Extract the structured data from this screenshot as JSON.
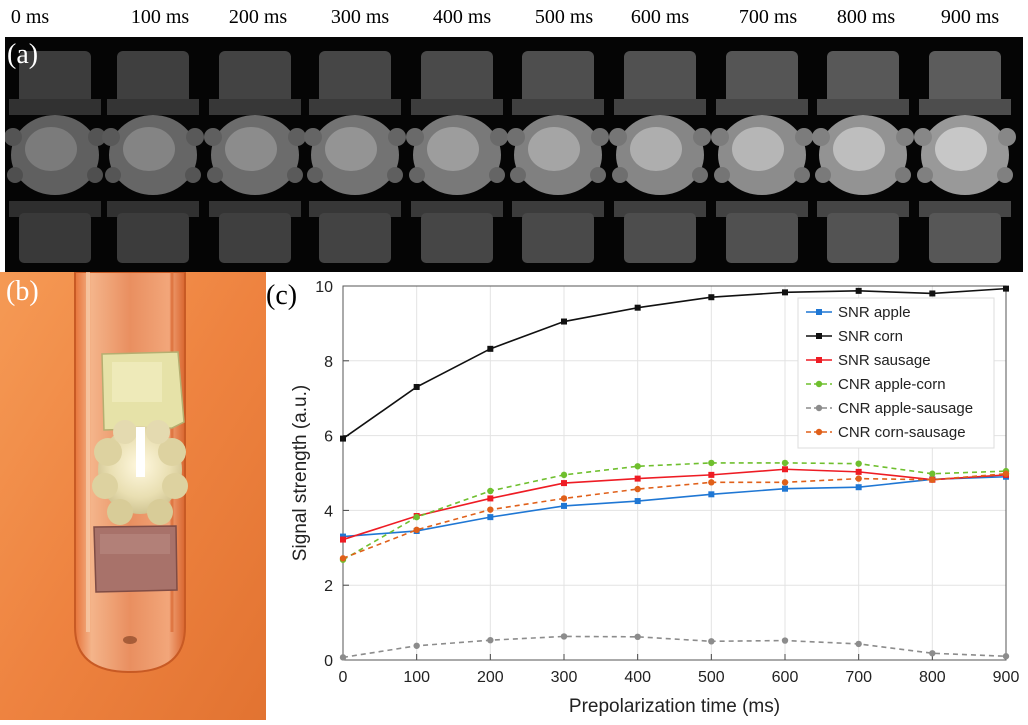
{
  "panels": {
    "a": "(a)",
    "b": "(b)",
    "c": "(c)"
  },
  "mri_strip": {
    "time_labels": [
      "0 ms",
      "100 ms",
      "200 ms",
      "300 ms",
      "400 ms",
      "500 ms",
      "600 ms",
      "700 ms",
      "800 ms",
      "900 ms"
    ]
  },
  "colors": {
    "apple": "#1f77d4",
    "corn": "#111111",
    "sausage": "#ee1c24",
    "cnr_apple_corn": "#6fbf2e",
    "cnr_apple_sausage": "#8c8c8c",
    "cnr_corn_sausage": "#e0601a",
    "photo_bg": "#f08440"
  },
  "chart_data": {
    "type": "line",
    "xlabel": "Prepolarization time (ms)",
    "ylabel": "Signal strength (a.u.)",
    "xlim": [
      0,
      900
    ],
    "ylim": [
      0,
      10
    ],
    "xticks": [
      0,
      100,
      200,
      300,
      400,
      500,
      600,
      700,
      800,
      900
    ],
    "yticks": [
      0,
      2,
      4,
      6,
      8,
      10
    ],
    "grid": true,
    "legend_position": "top-right",
    "x": [
      0,
      100,
      200,
      300,
      400,
      500,
      600,
      700,
      800,
      900
    ],
    "series": [
      {
        "name": "SNR apple",
        "style": "solid",
        "color_key": "apple",
        "values": [
          3.3,
          3.45,
          3.82,
          4.12,
          4.25,
          4.43,
          4.58,
          4.62,
          4.83,
          4.9
        ]
      },
      {
        "name": "SNR corn",
        "style": "solid",
        "color_key": "corn",
        "values": [
          5.92,
          7.3,
          8.32,
          9.05,
          9.42,
          9.7,
          9.83,
          9.87,
          9.8,
          9.93
        ]
      },
      {
        "name": "SNR sausage",
        "style": "solid",
        "color_key": "sausage",
        "values": [
          3.22,
          3.85,
          4.32,
          4.73,
          4.85,
          4.95,
          5.1,
          5.03,
          4.82,
          4.95
        ]
      },
      {
        "name": "CNR apple-corn",
        "style": "dashed",
        "color_key": "cnr_apple_corn",
        "values": [
          2.68,
          3.82,
          4.52,
          4.95,
          5.18,
          5.27,
          5.27,
          5.25,
          4.98,
          5.05
        ]
      },
      {
        "name": "CNR apple-sausage",
        "style": "dashed",
        "color_key": "cnr_apple_sausage",
        "values": [
          0.07,
          0.38,
          0.53,
          0.63,
          0.62,
          0.5,
          0.52,
          0.43,
          0.18,
          0.1
        ]
      },
      {
        "name": "CNR corn-sausage",
        "style": "dashed",
        "color_key": "cnr_corn_sausage",
        "values": [
          2.72,
          3.48,
          4.02,
          4.32,
          4.57,
          4.75,
          4.75,
          4.85,
          4.82,
          4.98
        ]
      }
    ]
  }
}
